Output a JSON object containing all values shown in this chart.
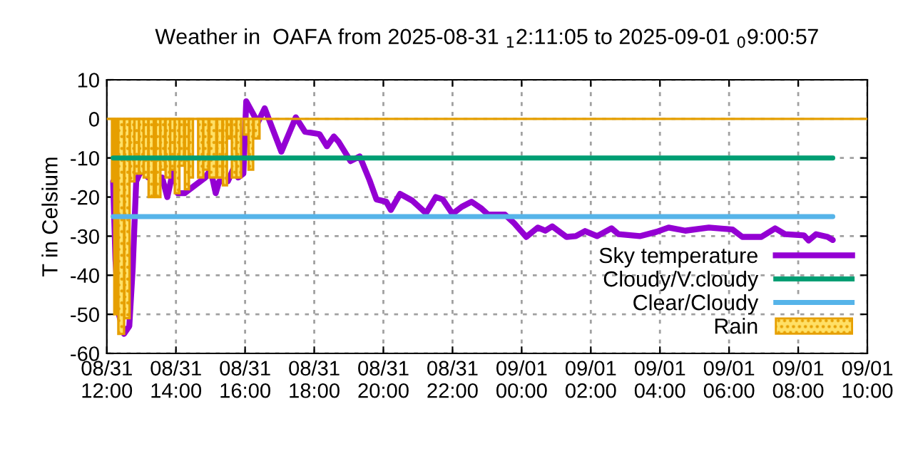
{
  "chart_data": {
    "type": "line",
    "title": "Weather in  OAFA from 2025-08-31 $_{1}$2:11:05 to 2025-09-01 $_{0}$9:00:57",
    "ylabel": "T in Celsium",
    "xlim": [
      "2025-08-31T12:00",
      "2025-09-01T10:00"
    ],
    "xticks": [
      {
        "value": "2025-08-31T12:00",
        "label": "08/31\n12:00"
      },
      {
        "value": "2025-08-31T14:00",
        "label": "08/31\n14:00"
      },
      {
        "value": "2025-08-31T16:00",
        "label": "08/31\n16:00"
      },
      {
        "value": "2025-08-31T18:00",
        "label": "08/31\n18:00"
      },
      {
        "value": "2025-08-31T20:00",
        "label": "08/31\n20:00"
      },
      {
        "value": "2025-08-31T22:00",
        "label": "08/31\n22:00"
      },
      {
        "value": "2025-09-01T00:00",
        "label": "09/01\n00:00"
      },
      {
        "value": "2025-09-01T02:00",
        "label": "09/01\n02:00"
      },
      {
        "value": "2025-09-01T04:00",
        "label": "09/01\n04:00"
      },
      {
        "value": "2025-09-01T06:00",
        "label": "09/01\n06:00"
      },
      {
        "value": "2025-09-01T08:00",
        "label": "09/01\n08:00"
      },
      {
        "value": "2025-09-01T10:00",
        "label": "09/01\n10:00"
      }
    ],
    "ylim": [
      -60,
      10
    ],
    "yticks": [
      -60,
      -50,
      -40,
      -30,
      -20,
      -10,
      0,
      10
    ],
    "grid": true,
    "ref_lines": [
      {
        "axis": "y",
        "value": 0,
        "color": "#e69f00"
      }
    ],
    "legend": "bottom right",
    "series": [
      {
        "name": "Rain",
        "type": "bar",
        "color": "#e69f00",
        "x": [
          "2025-08-31T12:11",
          "2025-08-31T12:15",
          "2025-08-31T12:25",
          "2025-08-31T12:35",
          "2025-08-31T12:44",
          "2025-08-31T12:52",
          "2025-08-31T13:00",
          "2025-08-31T13:08",
          "2025-08-31T13:17",
          "2025-08-31T13:29",
          "2025-08-31T13:37",
          "2025-08-31T13:46",
          "2025-08-31T13:54",
          "2025-08-31T14:02",
          "2025-08-31T14:10",
          "2025-08-31T14:19",
          "2025-08-31T14:26",
          "2025-08-31T14:43",
          "2025-08-31T14:52",
          "2025-08-31T15:04",
          "2025-08-31T15:16",
          "2025-08-31T15:25",
          "2025-08-31T15:32",
          "2025-08-31T15:41",
          "2025-08-31T15:49",
          "2025-08-31T16:02",
          "2025-08-31T16:10",
          "2025-08-31T16:20"
        ],
        "values": [
          -16,
          -50,
          -55,
          -51,
          -16,
          -14,
          -14,
          -15,
          -20,
          -20,
          -13,
          -15,
          -13,
          -19,
          -12,
          -18,
          -15,
          -15,
          -13,
          -15,
          -15,
          -17,
          -5,
          -15,
          -15,
          -4,
          -13,
          -5
        ]
      },
      {
        "name": "Sky temperature",
        "color": "#9400d3",
        "x": [
          "2025-08-31T12:11",
          "2025-08-31T12:15",
          "2025-08-31T12:21",
          "2025-08-31T12:30",
          "2025-08-31T12:39",
          "2025-08-31T12:45",
          "2025-08-31T12:51",
          "2025-08-31T13:00",
          "2025-08-31T13:12",
          "2025-08-31T13:36",
          "2025-08-31T13:45",
          "2025-08-31T13:57",
          "2025-08-31T14:03",
          "2025-08-31T14:15",
          "2025-08-31T14:42",
          "2025-08-31T14:51",
          "2025-08-31T15:00",
          "2025-08-31T15:09",
          "2025-08-31T15:15",
          "2025-08-31T15:30",
          "2025-08-31T15:39",
          "2025-08-31T15:48",
          "2025-08-31T15:57",
          "2025-08-31T16:02",
          "2025-08-31T16:22",
          "2025-08-31T16:34",
          "2025-08-31T17:03",
          "2025-08-31T17:28",
          "2025-08-31T17:44",
          "2025-08-31T18:09",
          "2025-08-31T18:22",
          "2025-08-31T18:34",
          "2025-08-31T18:42",
          "2025-08-31T19:03",
          "2025-08-31T19:19",
          "2025-08-31T19:36",
          "2025-08-31T19:48",
          "2025-08-31T20:05",
          "2025-08-31T20:13",
          "2025-08-31T20:29",
          "2025-08-31T20:50",
          "2025-08-31T21:14",
          "2025-08-31T21:31",
          "2025-08-31T21:43",
          "2025-08-31T22:00",
          "2025-08-31T22:16",
          "2025-08-31T22:33",
          "2025-08-31T22:49",
          "2025-08-31T23:02",
          "2025-08-31T23:31",
          "2025-08-31T23:47",
          "2025-09-01T00:08",
          "2025-09-01T00:28",
          "2025-09-01T00:41",
          "2025-09-01T00:53",
          "2025-09-01T01:18",
          "2025-09-01T01:34",
          "2025-09-01T01:50",
          "2025-09-01T02:11",
          "2025-09-01T02:36",
          "2025-09-01T02:48",
          "2025-09-01T03:25",
          "2025-09-01T03:54",
          "2025-09-01T04:15",
          "2025-09-01T04:44",
          "2025-09-01T05:25",
          "2025-09-01T06:06",
          "2025-09-01T06:23",
          "2025-09-01T06:56",
          "2025-09-01T07:20",
          "2025-09-01T07:37",
          "2025-09-01T08:10",
          "2025-09-01T08:18",
          "2025-09-01T08:31",
          "2025-09-01T08:51",
          "2025-09-01T09:00"
        ],
        "values": [
          -16,
          -36,
          -50,
          -55,
          -53,
          -38,
          -16,
          -13,
          -15,
          -15,
          -20,
          -12,
          -19,
          -19,
          -16,
          -15,
          -13,
          -19,
          -16,
          -16,
          -13,
          -15,
          -14,
          4.5,
          -0.9,
          2.7,
          -8.4,
          0.4,
          -3.3,
          -3.9,
          -7,
          -4.5,
          -5.8,
          -10.8,
          -9.6,
          -15.7,
          -20.6,
          -21.2,
          -23.3,
          -19.2,
          -20.9,
          -24.1,
          -20,
          -20.6,
          -24.3,
          -22.5,
          -21.2,
          -22.8,
          -24.5,
          -24.5,
          -26.7,
          -30.2,
          -27.8,
          -28.6,
          -27.5,
          -30.2,
          -30,
          -28.7,
          -30,
          -28,
          -29.5,
          -30,
          -28.9,
          -27.8,
          -28.6,
          -27.8,
          -28.3,
          -30.2,
          -30.2,
          -28,
          -29.5,
          -29.8,
          -31.1,
          -29.5,
          -30.2,
          -31
        ]
      },
      {
        "name": "Cloudy/V.cloudy",
        "color": "#009e73",
        "x": [
          "2025-08-31T12:11",
          "2025-09-01T09:00"
        ],
        "values": [
          -10,
          -10
        ]
      },
      {
        "name": "Clear/Cloudy",
        "color": "#56b4e9",
        "x": [
          "2025-08-31T12:11",
          "2025-09-01T09:00"
        ],
        "values": [
          -25,
          -25
        ]
      }
    ]
  }
}
